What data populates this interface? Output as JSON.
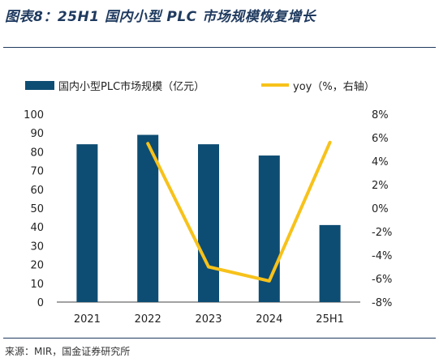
{
  "title": "图表8：25H1 国内小型 PLC 市场规模恢复增长",
  "source": "来源：MIR，国金证券研究所",
  "chart_data": {
    "type": "bar+line",
    "categories": [
      "2021",
      "2022",
      "2023",
      "2024",
      "25H1"
    ],
    "series": [
      {
        "name": "国内小型PLC市场规模（亿元）",
        "type": "bar",
        "axis": "left",
        "color": "#0e4d73",
        "values": [
          84,
          89,
          84,
          78,
          41
        ]
      },
      {
        "name": "yoy（%，右轴）",
        "type": "line",
        "axis": "right",
        "color": "#f7c21a",
        "values": [
          null,
          5.5,
          -5.0,
          -6.2,
          5.6
        ]
      }
    ],
    "y_left": {
      "min": 0,
      "max": 100,
      "step": 10,
      "ticks": [
        "0",
        "10",
        "20",
        "30",
        "40",
        "50",
        "60",
        "70",
        "80",
        "90",
        "100"
      ]
    },
    "y_right": {
      "min": -8,
      "max": 8,
      "step": 2,
      "ticks": [
        "-8%",
        "-6%",
        "-4%",
        "-2%",
        "0%",
        "2%",
        "4%",
        "6%",
        "8%"
      ]
    },
    "legend_position": "top",
    "grid": false
  }
}
